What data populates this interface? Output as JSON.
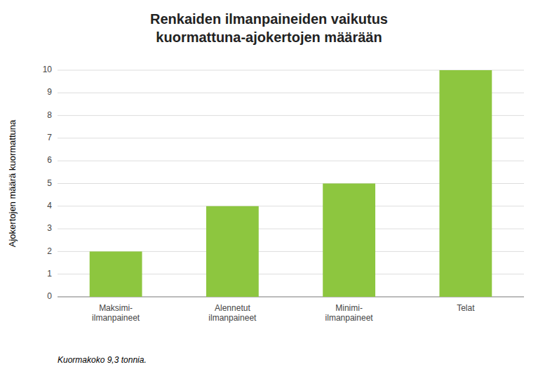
{
  "chart_data": {
    "type": "bar",
    "title": "Renkaiden ilmanpaineiden vaikutus\nkuormattuna-ajokertojen määrään",
    "categories": [
      "Maksimi-\nilmanpaineet",
      "Alennetut\nilmanpaineet",
      "Minimi-\nilmanpaineet",
      "Telat"
    ],
    "values": [
      2,
      4,
      5,
      10
    ],
    "color": "#8dc63f",
    "ylabel": "Ajokertojen määrä kuormattuna",
    "ylim": [
      0,
      10
    ],
    "yticks": [
      0,
      1,
      2,
      3,
      4,
      5,
      6,
      7,
      8,
      9,
      10
    ],
    "grid": true,
    "footnote": "Kuormakoko 9,3 tonnia."
  }
}
